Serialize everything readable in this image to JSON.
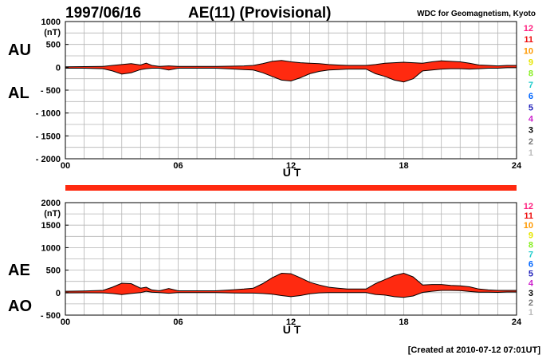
{
  "header": {
    "date": "1997/06/16",
    "index_title": "AE(11) (Provisional)",
    "source": "WDC for Geomagnetism, Kyoto",
    "created": "[Created at 2010-07-12 07:01UT]"
  },
  "colors": {
    "fill": "#ff2a10",
    "outline": "#000000",
    "grid": "#b4b4b4"
  },
  "legend_numbers": [
    {
      "label": "12",
      "color": "#ff1f7f"
    },
    {
      "label": "11",
      "color": "#ee1111"
    },
    {
      "label": "10",
      "color": "#ff9900"
    },
    {
      "label": "9",
      "color": "#e6e600"
    },
    {
      "label": "8",
      "color": "#88ee22"
    },
    {
      "label": "7",
      "color": "#22cccc"
    },
    {
      "label": "6",
      "color": "#0066ff"
    },
    {
      "label": "5",
      "color": "#2222bb"
    },
    {
      "label": "4",
      "color": "#cc22cc"
    },
    {
      "label": "3",
      "color": "#000000"
    },
    {
      "label": "2",
      "color": "#777777"
    },
    {
      "label": "1",
      "color": "#bbbbbb"
    }
  ],
  "chart_data": [
    {
      "type": "area",
      "xlabel": "U T",
      "unit_label": "(nT)",
      "upper_label": "AU",
      "lower_label": "AL",
      "xlim": [
        0,
        24
      ],
      "ylim": [
        -2000,
        1000
      ],
      "x_ticks": [
        "00",
        "06",
        "12",
        "18",
        "24"
      ],
      "y_ticks": [
        "1000",
        "500",
        "0",
        "- 500",
        "- 1000",
        "- 1500",
        "- 2000"
      ],
      "y_tick_values": [
        1000,
        500,
        0,
        -500,
        -1000,
        -1500,
        -2000
      ],
      "series": [
        {
          "name": "AU",
          "x": [
            0,
            1,
            2,
            2.5,
            3,
            3.5,
            4,
            4.3,
            4.6,
            5,
            5.5,
            6,
            7,
            8,
            9,
            9.5,
            10,
            10.5,
            11,
            11.5,
            12,
            12.5,
            13,
            13.5,
            14,
            14.5,
            15,
            16,
            16.5,
            17,
            17.5,
            18,
            18.5,
            19,
            19.5,
            20,
            20.5,
            21,
            21.5,
            22,
            22.5,
            23,
            23.5,
            24
          ],
          "values": [
            10,
            15,
            20,
            40,
            60,
            80,
            50,
            90,
            40,
            20,
            30,
            20,
            20,
            20,
            25,
            30,
            40,
            80,
            130,
            150,
            120,
            100,
            90,
            80,
            60,
            50,
            40,
            40,
            60,
            90,
            100,
            110,
            100,
            90,
            120,
            140,
            130,
            120,
            90,
            50,
            40,
            30,
            40,
            40
          ]
        },
        {
          "name": "AL",
          "x": [
            0,
            1,
            2,
            2.5,
            3,
            3.5,
            4,
            4.3,
            4.6,
            5,
            5.5,
            6,
            7,
            8,
            9,
            9.5,
            10,
            10.5,
            11,
            11.5,
            12,
            12.5,
            13,
            13.5,
            14,
            14.5,
            15,
            16,
            16.5,
            17,
            17.5,
            18,
            18.5,
            19,
            19.5,
            20,
            20.5,
            21,
            21.5,
            22,
            22.5,
            23,
            23.5,
            24
          ],
          "values": [
            -20,
            -20,
            -30,
            -80,
            -150,
            -120,
            -50,
            -30,
            -20,
            -20,
            -60,
            -20,
            -20,
            -20,
            -40,
            -50,
            -60,
            -120,
            -200,
            -280,
            -300,
            -230,
            -140,
            -90,
            -60,
            -50,
            -40,
            -40,
            -140,
            -200,
            -280,
            -320,
            -250,
            -80,
            -60,
            -40,
            -30,
            -30,
            -40,
            -30,
            -20,
            -20,
            -10,
            -10
          ]
        }
      ]
    },
    {
      "type": "area",
      "xlabel": "U T",
      "unit_label": "(nT)",
      "upper_label": "AE",
      "lower_label": "AO",
      "xlim": [
        0,
        24
      ],
      "ylim": [
        -500,
        2000
      ],
      "x_ticks": [
        "00",
        "06",
        "12",
        "18",
        "24"
      ],
      "y_ticks": [
        "2000",
        "1500",
        "1000",
        "500",
        "0",
        "- 500"
      ],
      "y_tick_values": [
        2000,
        1500,
        1000,
        500,
        0,
        -500
      ],
      "series": [
        {
          "name": "AE",
          "x": [
            0,
            1,
            2,
            2.5,
            3,
            3.5,
            4,
            4.3,
            4.6,
            5,
            5.5,
            6,
            7,
            8,
            9,
            9.5,
            10,
            10.5,
            11,
            11.5,
            12,
            12.5,
            13,
            13.5,
            14,
            14.5,
            15,
            16,
            16.5,
            17,
            17.5,
            18,
            18.5,
            19,
            19.5,
            20,
            20.5,
            21,
            21.5,
            22,
            22.5,
            23,
            23.5,
            24
          ],
          "values": [
            30,
            35,
            50,
            120,
            210,
            200,
            100,
            120,
            60,
            40,
            90,
            40,
            40,
            40,
            65,
            80,
            100,
            200,
            330,
            430,
            420,
            330,
            230,
            170,
            120,
            100,
            80,
            80,
            200,
            290,
            380,
            430,
            350,
            170,
            180,
            180,
            160,
            150,
            130,
            80,
            60,
            50,
            50,
            50
          ]
        },
        {
          "name": "AO",
          "x": [
            0,
            1,
            2,
            2.5,
            3,
            3.5,
            4,
            4.3,
            4.6,
            5,
            5.5,
            6,
            7,
            8,
            9,
            9.5,
            10,
            10.5,
            11,
            11.5,
            12,
            12.5,
            13,
            13.5,
            14,
            14.5,
            15,
            16,
            16.5,
            17,
            17.5,
            18,
            18.5,
            19,
            19.5,
            20,
            20.5,
            21,
            21.5,
            22,
            22.5,
            23,
            23.5,
            24
          ],
          "values": [
            -5,
            -3,
            -5,
            -20,
            -45,
            -20,
            0,
            30,
            10,
            0,
            -15,
            0,
            0,
            0,
            -8,
            -10,
            -10,
            -20,
            -35,
            -65,
            -90,
            -65,
            -25,
            -5,
            0,
            0,
            0,
            0,
            -40,
            -55,
            -90,
            -105,
            -75,
            5,
            30,
            50,
            50,
            45,
            25,
            10,
            10,
            5,
            15,
            15
          ]
        }
      ]
    }
  ]
}
